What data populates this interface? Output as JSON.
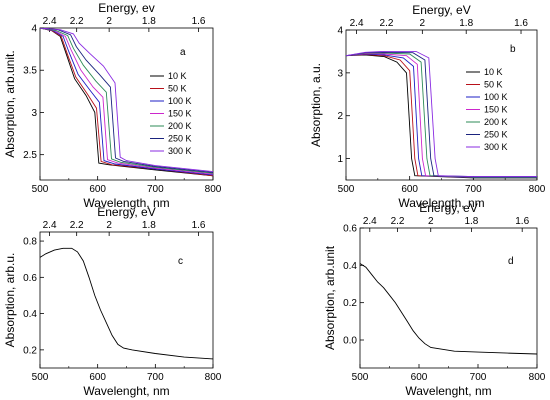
{
  "chart_data": [
    {
      "type": "line",
      "panel": "a",
      "xlabel": "Wavelength, nm",
      "ylabel": "Absorption, arb.unit.",
      "top_axis_label": "Energy, ev",
      "xlim": [
        500,
        800
      ],
      "ylim": [
        2.2,
        4.0
      ],
      "x_ticks": [
        500,
        600,
        700,
        800
      ],
      "y_ticks": [
        2.5,
        3.0,
        3.5,
        4.0
      ],
      "top_ticks": [
        {
          "label": "2.4",
          "wavelength": 516.6
        },
        {
          "label": "2.2",
          "wavelength": 563.6
        },
        {
          "label": "2",
          "wavelength": 619.9
        },
        {
          "label": "1.8",
          "wavelength": 688.8
        },
        {
          "label": "1.6",
          "wavelength": 774.9
        }
      ],
      "legend_position": "center-right",
      "series": [
        {
          "name": "10 K",
          "color": "#000000",
          "points": [
            [
              500,
              4.0
            ],
            [
              520,
              3.97
            ],
            [
              535,
              3.9
            ],
            [
              545,
              3.7
            ],
            [
              560,
              3.4
            ],
            [
              580,
              3.2
            ],
            [
              595,
              3.0
            ],
            [
              602,
              2.4
            ],
            [
              620,
              2.38
            ],
            [
              700,
              2.32
            ],
            [
              800,
              2.25
            ]
          ]
        },
        {
          "name": "50 K",
          "color": "#b8111a",
          "points": [
            [
              500,
              4.0
            ],
            [
              520,
              3.97
            ],
            [
              537,
              3.9
            ],
            [
              547,
              3.7
            ],
            [
              562,
              3.42
            ],
            [
              582,
              3.22
            ],
            [
              598,
              3.05
            ],
            [
              606,
              2.42
            ],
            [
              625,
              2.38
            ],
            [
              700,
              2.33
            ],
            [
              800,
              2.25
            ]
          ]
        },
        {
          "name": "100 K",
          "color": "#1d1fc4",
          "points": [
            [
              500,
              4.0
            ],
            [
              522,
              3.97
            ],
            [
              540,
              3.9
            ],
            [
              550,
              3.72
            ],
            [
              566,
              3.45
            ],
            [
              587,
              3.26
            ],
            [
              603,
              3.12
            ],
            [
              611,
              2.43
            ],
            [
              630,
              2.39
            ],
            [
              700,
              2.33
            ],
            [
              800,
              2.26
            ]
          ]
        },
        {
          "name": "150 K",
          "color": "#cc27cc",
          "points": [
            [
              500,
              4.0
            ],
            [
              525,
              3.97
            ],
            [
              544,
              3.9
            ],
            [
              554,
              3.74
            ],
            [
              571,
              3.5
            ],
            [
              592,
              3.3
            ],
            [
              609,
              3.18
            ],
            [
              617,
              2.44
            ],
            [
              635,
              2.4
            ],
            [
              700,
              2.34
            ],
            [
              800,
              2.27
            ]
          ]
        },
        {
          "name": "200 K",
          "color": "#2e8b57",
          "points": [
            [
              500,
              4.0
            ],
            [
              528,
              3.97
            ],
            [
              548,
              3.91
            ],
            [
              558,
              3.76
            ],
            [
              575,
              3.56
            ],
            [
              597,
              3.37
            ],
            [
              615,
              3.24
            ],
            [
              624,
              2.45
            ],
            [
              640,
              2.41
            ],
            [
              700,
              2.35
            ],
            [
              800,
              2.28
            ]
          ]
        },
        {
          "name": "250 K",
          "color": "#1a237e",
          "points": [
            [
              500,
              4.0
            ],
            [
              531,
              3.98
            ],
            [
              553,
              3.92
            ],
            [
              563,
              3.78
            ],
            [
              580,
              3.62
            ],
            [
              603,
              3.45
            ],
            [
              622,
              3.3
            ],
            [
              631,
              2.46
            ],
            [
              645,
              2.42
            ],
            [
              700,
              2.36
            ],
            [
              800,
              2.29
            ]
          ]
        },
        {
          "name": "300 K",
          "color": "#8a2be2",
          "points": [
            [
              500,
              4.0
            ],
            [
              535,
              3.98
            ],
            [
              558,
              3.93
            ],
            [
              568,
              3.82
            ],
            [
              586,
              3.7
            ],
            [
              610,
              3.55
            ],
            [
              630,
              3.35
            ],
            [
              639,
              2.47
            ],
            [
              650,
              2.43
            ],
            [
              700,
              2.37
            ],
            [
              800,
              2.3
            ]
          ]
        }
      ]
    },
    {
      "type": "line",
      "panel": "b",
      "xlabel": "Wavelength, nm",
      "ylabel": "Absorption, a.u.",
      "top_axis_label": "Energy, eV",
      "xlim": [
        500,
        800
      ],
      "ylim": [
        0.5,
        4.0
      ],
      "x_ticks": [
        500,
        600,
        700,
        800
      ],
      "y_ticks": [
        1,
        2,
        3,
        4
      ],
      "top_ticks": [
        {
          "label": "2.4",
          "wavelength": 516.6
        },
        {
          "label": "2.2",
          "wavelength": 563.6
        },
        {
          "label": "2",
          "wavelength": 619.9
        },
        {
          "label": "1.8",
          "wavelength": 688.8
        },
        {
          "label": "1.6",
          "wavelength": 774.9
        }
      ],
      "legend_position": "center-right",
      "series": [
        {
          "name": "10 K",
          "color": "#000000",
          "points": [
            [
              500,
              3.4
            ],
            [
              530,
              3.42
            ],
            [
              560,
              3.38
            ],
            [
              580,
              3.25
            ],
            [
              595,
              3.0
            ],
            [
              603,
              1.0
            ],
            [
              608,
              0.6
            ],
            [
              700,
              0.55
            ],
            [
              800,
              0.55
            ]
          ]
        },
        {
          "name": "50 K",
          "color": "#b8111a",
          "points": [
            [
              500,
              3.4
            ],
            [
              530,
              3.43
            ],
            [
              560,
              3.4
            ],
            [
              585,
              3.3
            ],
            [
              600,
              3.05
            ],
            [
              608,
              1.0
            ],
            [
              613,
              0.6
            ],
            [
              700,
              0.56
            ],
            [
              800,
              0.56
            ]
          ]
        },
        {
          "name": "100 K",
          "color": "#1d1fc4",
          "points": [
            [
              500,
              3.4
            ],
            [
              530,
              3.44
            ],
            [
              560,
              3.42
            ],
            [
              590,
              3.35
            ],
            [
              606,
              3.15
            ],
            [
              614,
              1.0
            ],
            [
              619,
              0.6
            ],
            [
              700,
              0.56
            ],
            [
              800,
              0.56
            ]
          ]
        },
        {
          "name": "150 K",
          "color": "#cc27cc",
          "points": [
            [
              500,
              3.4
            ],
            [
              530,
              3.45
            ],
            [
              560,
              3.44
            ],
            [
              595,
              3.4
            ],
            [
              612,
              3.2
            ],
            [
              620,
              1.0
            ],
            [
              625,
              0.6
            ],
            [
              700,
              0.57
            ],
            [
              800,
              0.57
            ]
          ]
        },
        {
          "name": "200 K",
          "color": "#2e8b57",
          "points": [
            [
              500,
              3.4
            ],
            [
              530,
              3.46
            ],
            [
              560,
              3.46
            ],
            [
              600,
              3.44
            ],
            [
              618,
              3.25
            ],
            [
              627,
              1.0
            ],
            [
              632,
              0.6
            ],
            [
              700,
              0.57
            ],
            [
              800,
              0.57
            ]
          ]
        },
        {
          "name": "250 K",
          "color": "#1a237e",
          "points": [
            [
              500,
              3.4
            ],
            [
              530,
              3.47
            ],
            [
              560,
              3.48
            ],
            [
              605,
              3.47
            ],
            [
              624,
              3.3
            ],
            [
              633,
              1.0
            ],
            [
              638,
              0.6
            ],
            [
              700,
              0.58
            ],
            [
              800,
              0.58
            ]
          ]
        },
        {
          "name": "300 K",
          "color": "#8a2be2",
          "points": [
            [
              500,
              3.4
            ],
            [
              530,
              3.48
            ],
            [
              560,
              3.5
            ],
            [
              610,
              3.5
            ],
            [
              630,
              3.35
            ],
            [
              640,
              1.0
            ],
            [
              645,
              0.6
            ],
            [
              700,
              0.58
            ],
            [
              800,
              0.58
            ]
          ]
        }
      ]
    },
    {
      "type": "line",
      "panel": "c",
      "xlabel": "Wavelenght, nm",
      "ylabel": "Absorption, arb.u.",
      "top_axis_label": "Energy, eV",
      "xlim": [
        500,
        800
      ],
      "ylim": [
        0.1,
        0.85
      ],
      "x_ticks": [
        500,
        600,
        700,
        800
      ],
      "y_ticks": [
        0.2,
        0.4,
        0.6,
        0.8
      ],
      "top_ticks": [
        {
          "label": "2.4",
          "wavelength": 516.6
        },
        {
          "label": "2.2",
          "wavelength": 563.6
        },
        {
          "label": "2",
          "wavelength": 619.9
        },
        {
          "label": "1.8",
          "wavelength": 688.8
        },
        {
          "label": "1.6",
          "wavelength": 774.9
        }
      ],
      "series": [
        {
          "name": "",
          "color": "#000000",
          "points": [
            [
              500,
              0.71
            ],
            [
              510,
              0.73
            ],
            [
              525,
              0.75
            ],
            [
              540,
              0.76
            ],
            [
              555,
              0.76
            ],
            [
              565,
              0.74
            ],
            [
              575,
              0.69
            ],
            [
              585,
              0.6
            ],
            [
              595,
              0.5
            ],
            [
              605,
              0.42
            ],
            [
              615,
              0.35
            ],
            [
              625,
              0.28
            ],
            [
              635,
              0.23
            ],
            [
              645,
              0.21
            ],
            [
              660,
              0.2
            ],
            [
              700,
              0.18
            ],
            [
              750,
              0.16
            ],
            [
              800,
              0.15
            ]
          ]
        }
      ]
    },
    {
      "type": "line",
      "panel": "d",
      "xlabel": "Wavelenght, nm",
      "ylabel": "Absorption, arb.unit",
      "top_axis_label": "Energy, eV",
      "xlim": [
        500,
        800
      ],
      "ylim": [
        -0.15,
        0.6
      ],
      "x_ticks": [
        500,
        600,
        700,
        800
      ],
      "y_ticks": [
        0.0,
        0.2,
        0.4,
        0.6
      ],
      "y_tick_labels": [
        "0.0",
        "0.2",
        "0.4",
        "0.6"
      ],
      "top_ticks": [
        {
          "label": "2.4",
          "wavelength": 516.6
        },
        {
          "label": "2.2",
          "wavelength": 563.6
        },
        {
          "label": "2",
          "wavelength": 619.9
        },
        {
          "label": "1.8",
          "wavelength": 688.8
        },
        {
          "label": "1.6",
          "wavelength": 774.9
        }
      ],
      "series": [
        {
          "name": "",
          "color": "#000000",
          "points": [
            [
              500,
              0.41
            ],
            [
              510,
              0.39
            ],
            [
              520,
              0.35
            ],
            [
              530,
              0.31
            ],
            [
              540,
              0.28
            ],
            [
              550,
              0.24
            ],
            [
              560,
              0.2
            ],
            [
              570,
              0.15
            ],
            [
              580,
              0.1
            ],
            [
              590,
              0.05
            ],
            [
              600,
              0.01
            ],
            [
              610,
              -0.02
            ],
            [
              620,
              -0.04
            ],
            [
              640,
              -0.05
            ],
            [
              660,
              -0.06
            ],
            [
              700,
              -0.065
            ],
            [
              750,
              -0.07
            ],
            [
              800,
              -0.075
            ]
          ]
        }
      ]
    }
  ]
}
